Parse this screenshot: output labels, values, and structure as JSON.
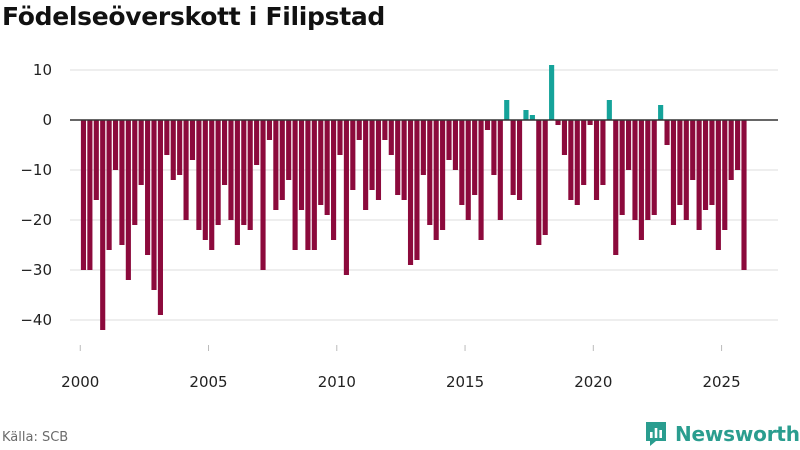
{
  "title": "Födelseöverskott i Filipstad",
  "source": "Källa: SCB",
  "brand": {
    "name": "Newsworthy",
    "icon": "newsworthy-logo-icon"
  },
  "colors": {
    "negative": "#8c0a3c",
    "positive": "#15a39a",
    "grid": "#dddddd",
    "zero_line": "#333333",
    "tick_text": "#222222",
    "brand": "#2a9d8f"
  },
  "chart_data": {
    "type": "bar",
    "title": "Födelseöverskott i Filipstad",
    "xlabel": "",
    "ylabel": "",
    "xlim": [
      1999.6,
      2027.2
    ],
    "ylim": [
      -45,
      12
    ],
    "yticks": [
      10,
      0,
      -10,
      -20,
      -30,
      -40
    ],
    "xticks": [
      2000,
      2005,
      2010,
      2015,
      2020,
      2025
    ],
    "bar_width": 0.2,
    "grid": true,
    "bars": [
      {
        "x": 2000.125,
        "value": -30
      },
      {
        "x": 2000.375,
        "value": -30
      },
      {
        "x": 2000.625,
        "value": -16
      },
      {
        "x": 2000.875,
        "value": -42
      },
      {
        "x": 2001.125,
        "value": -26
      },
      {
        "x": 2001.375,
        "value": -10
      },
      {
        "x": 2001.625,
        "value": -25
      },
      {
        "x": 2001.875,
        "value": -32
      },
      {
        "x": 2002.125,
        "value": -21
      },
      {
        "x": 2002.375,
        "value": -13
      },
      {
        "x": 2002.625,
        "value": -27
      },
      {
        "x": 2002.875,
        "value": -34
      },
      {
        "x": 2003.125,
        "value": -39
      },
      {
        "x": 2003.375,
        "value": -7
      },
      {
        "x": 2003.625,
        "value": -12
      },
      {
        "x": 2003.875,
        "value": -11
      },
      {
        "x": 2004.125,
        "value": -20
      },
      {
        "x": 2004.375,
        "value": -8
      },
      {
        "x": 2004.625,
        "value": -22
      },
      {
        "x": 2004.875,
        "value": -24
      },
      {
        "x": 2005.125,
        "value": -26
      },
      {
        "x": 2005.375,
        "value": -21
      },
      {
        "x": 2005.625,
        "value": -13
      },
      {
        "x": 2005.875,
        "value": -20
      },
      {
        "x": 2006.125,
        "value": -25
      },
      {
        "x": 2006.375,
        "value": -21
      },
      {
        "x": 2006.625,
        "value": -22
      },
      {
        "x": 2006.875,
        "value": -9
      },
      {
        "x": 2007.125,
        "value": -30
      },
      {
        "x": 2007.375,
        "value": -4
      },
      {
        "x": 2007.625,
        "value": -18
      },
      {
        "x": 2007.875,
        "value": -16
      },
      {
        "x": 2008.125,
        "value": -12
      },
      {
        "x": 2008.375,
        "value": -26
      },
      {
        "x": 2008.625,
        "value": -18
      },
      {
        "x": 2008.875,
        "value": -26
      },
      {
        "x": 2009.125,
        "value": -26
      },
      {
        "x": 2009.375,
        "value": -17
      },
      {
        "x": 2009.625,
        "value": -19
      },
      {
        "x": 2009.875,
        "value": -24
      },
      {
        "x": 2010.125,
        "value": -7
      },
      {
        "x": 2010.375,
        "value": -31
      },
      {
        "x": 2010.625,
        "value": -14
      },
      {
        "x": 2010.875,
        "value": -4
      },
      {
        "x": 2011.125,
        "value": -18
      },
      {
        "x": 2011.375,
        "value": -14
      },
      {
        "x": 2011.625,
        "value": -16
      },
      {
        "x": 2011.875,
        "value": -4
      },
      {
        "x": 2012.125,
        "value": -7
      },
      {
        "x": 2012.375,
        "value": -15
      },
      {
        "x": 2012.625,
        "value": -16
      },
      {
        "x": 2012.875,
        "value": -29
      },
      {
        "x": 2013.125,
        "value": -28
      },
      {
        "x": 2013.375,
        "value": -11
      },
      {
        "x": 2013.625,
        "value": -21
      },
      {
        "x": 2013.875,
        "value": -24
      },
      {
        "x": 2014.125,
        "value": -22
      },
      {
        "x": 2014.375,
        "value": -8
      },
      {
        "x": 2014.625,
        "value": -10
      },
      {
        "x": 2014.875,
        "value": -17
      },
      {
        "x": 2015.125,
        "value": -20
      },
      {
        "x": 2015.375,
        "value": -15
      },
      {
        "x": 2015.625,
        "value": -24
      },
      {
        "x": 2015.875,
        "value": -2
      },
      {
        "x": 2016.125,
        "value": -11
      },
      {
        "x": 2016.375,
        "value": -20
      },
      {
        "x": 2016.625,
        "value": 4
      },
      {
        "x": 2016.875,
        "value": -15
      },
      {
        "x": 2017.125,
        "value": -16
      },
      {
        "x": 2017.375,
        "value": 2
      },
      {
        "x": 2017.625,
        "value": 1
      },
      {
        "x": 2017.875,
        "value": -25
      },
      {
        "x": 2018.125,
        "value": -23
      },
      {
        "x": 2018.375,
        "value": 11
      },
      {
        "x": 2018.625,
        "value": -1
      },
      {
        "x": 2018.875,
        "value": -7
      },
      {
        "x": 2019.125,
        "value": -16
      },
      {
        "x": 2019.375,
        "value": -17
      },
      {
        "x": 2019.625,
        "value": -13
      },
      {
        "x": 2019.875,
        "value": -1
      },
      {
        "x": 2020.125,
        "value": -16
      },
      {
        "x": 2020.375,
        "value": -13
      },
      {
        "x": 2020.625,
        "value": 4
      },
      {
        "x": 2020.875,
        "value": -27
      },
      {
        "x": 2021.125,
        "value": -19
      },
      {
        "x": 2021.375,
        "value": -10
      },
      {
        "x": 2021.625,
        "value": -20
      },
      {
        "x": 2021.875,
        "value": -24
      },
      {
        "x": 2022.125,
        "value": -20
      },
      {
        "x": 2022.375,
        "value": -19
      },
      {
        "x": 2022.625,
        "value": 3
      },
      {
        "x": 2022.875,
        "value": -5
      },
      {
        "x": 2023.125,
        "value": -21
      },
      {
        "x": 2023.375,
        "value": -17
      },
      {
        "x": 2023.625,
        "value": -20
      },
      {
        "x": 2023.875,
        "value": -12
      },
      {
        "x": 2024.125,
        "value": -22
      },
      {
        "x": 2024.375,
        "value": -18
      },
      {
        "x": 2024.625,
        "value": -17
      },
      {
        "x": 2024.875,
        "value": -26
      },
      {
        "x": 2025.125,
        "value": -22
      },
      {
        "x": 2025.375,
        "value": -12
      },
      {
        "x": 2025.625,
        "value": -10
      },
      {
        "x": 2025.875,
        "value": -30
      }
    ]
  }
}
